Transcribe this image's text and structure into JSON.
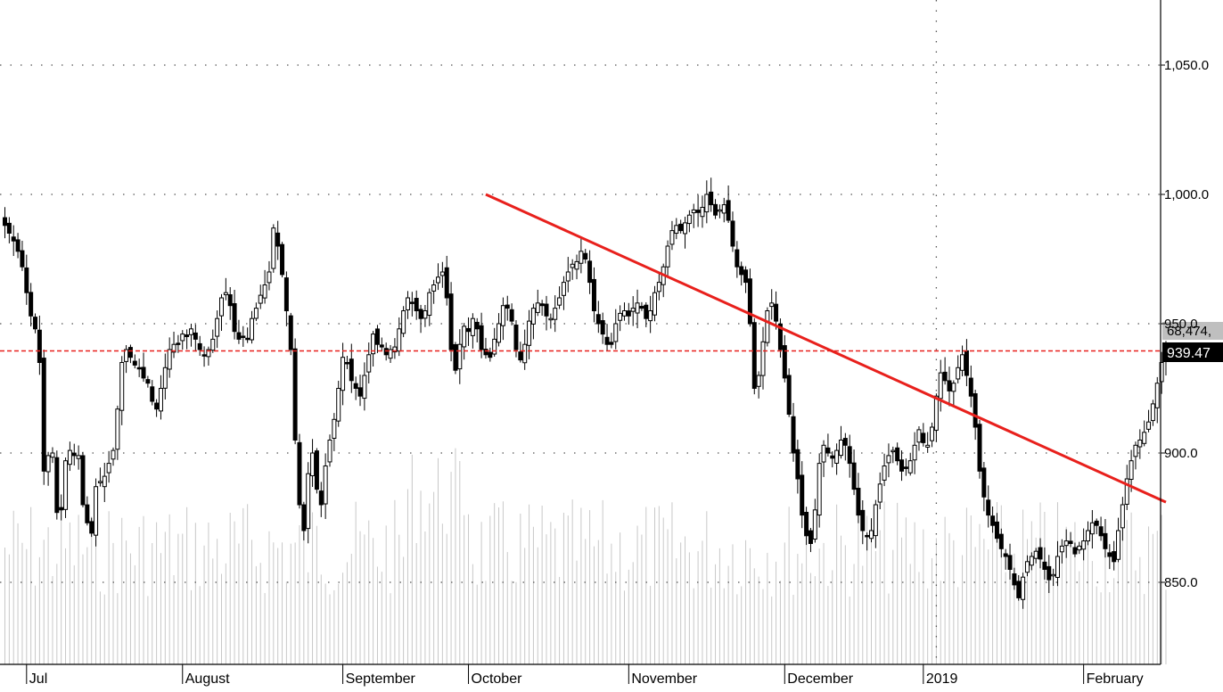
{
  "chart_data": {
    "type": "candlestick",
    "y_axis": {
      "ticks": [
        850,
        900,
        950,
        1000,
        1050
      ],
      "tick_labels": [
        "850.0",
        "900.0",
        "950.0",
        "1,000.0",
        "1,050.0"
      ],
      "range": [
        815,
        1075
      ],
      "position": "right",
      "grid": true
    },
    "x_axis": {
      "month_labels": [
        "Jul",
        "August",
        "September",
        "October",
        "November",
        "December",
        "2019",
        "February"
      ],
      "month_start_index": [
        5,
        41,
        78,
        107,
        144,
        180,
        212,
        249
      ]
    },
    "markers": {
      "price_label": "939.47",
      "volume_label": "68,474,",
      "last_price": 939.47
    },
    "colors": {
      "trendline": "#e8201c",
      "price_line": "#e8201c",
      "up_candle": "#ffffff",
      "down_candle": "#000000",
      "volume": "#c8c8c8",
      "grid": "#555555",
      "price_tag_bg": "#000000",
      "volume_tag_bg": "#bfbfbf"
    },
    "trendline": {
      "from": {
        "index": 111,
        "value": 1000
      },
      "to": {
        "index": 268,
        "value": 881
      }
    },
    "vertical_gridline_index": 215,
    "close": [
      987,
      980,
      969,
      955,
      940,
      905,
      880,
      870,
      892,
      900,
      886,
      880,
      895,
      905,
      913,
      925,
      937,
      935,
      928,
      925,
      922,
      930,
      938,
      946,
      942,
      941,
      938,
      940,
      941,
      948,
      955,
      960,
      958,
      955,
      952,
      955,
      962,
      965,
      968,
      970,
      960,
      940,
      932,
      942,
      949,
      947,
      952,
      948,
      940,
      938,
      937,
      944,
      950,
      957,
      956,
      951,
      940,
      936,
      942,
      951,
      956,
      958,
      957,
      953,
      952,
      956,
      960,
      966,
      970,
      973,
      974,
      978,
      975,
      966,
      955,
      950,
      946,
      942,
      942,
      950,
      954,
      955,
      953,
      956,
      958,
      956,
      952,
      955,
      962,
      966,
      972,
      980,
      986,
      988,
      986,
      989,
      992,
      994,
      993,
      995,
      1000,
      996,
      992,
      994,
      996,
      990,
      980,
      972,
      969,
      966,
      950,
      925,
      930,
      943,
      955,
      958,
      951,
      940,
      929,
      915,
      900,
      890,
      876,
      868,
      865,
      878,
      896,
      903,
      900,
      898,
      901,
      905,
      903,
      896,
      886,
      876,
      870,
      868,
      870,
      880,
      888,
      895,
      899,
      901,
      897,
      893,
      894,
      897,
      903,
      909,
      904,
      903,
      910,
      922,
      931,
      928,
      924,
      927,
      933,
      938,
      930,
      922,
      910,
      893,
      883,
      876,
      872,
      867,
      863,
      860,
      855,
      849,
      844,
      852,
      858,
      860,
      862,
      859,
      855,
      851,
      853,
      860,
      864,
      866,
      865,
      861,
      864,
      866,
      870,
      873,
      872,
      868,
      863,
      860,
      858,
      870,
      880,
      890,
      897,
      903,
      905,
      908,
      912,
      919,
      927,
      935,
      939.47
    ],
    "start_index": 62,
    "lead_in_close": [
      988,
      985,
      982,
      978,
      972,
      962,
      953,
      948,
      935,
      893,
      899,
      900,
      877,
      878,
      897,
      901,
      899,
      899,
      880,
      873,
      869,
      887,
      889,
      891,
      896,
      901,
      917,
      935,
      940,
      937,
      934,
      933,
      929,
      927,
      920,
      917,
      925,
      933,
      940,
      942,
      942,
      946,
      945,
      948,
      944,
      940,
      938,
      940,
      944,
      952,
      960,
      962,
      957,
      947,
      944,
      945,
      944,
      952,
      956,
      961,
      965,
      970
    ]
  }
}
